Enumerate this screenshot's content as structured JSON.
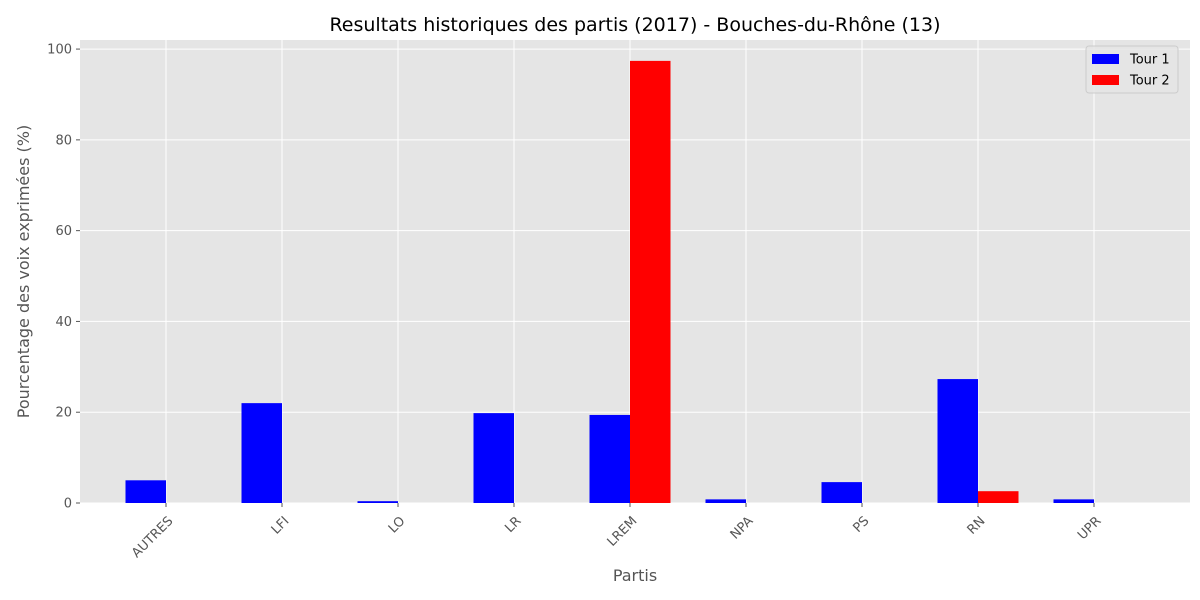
{
  "chart_data": {
    "type": "bar",
    "title": "Resultats historiques des partis (2017) - Bouches-du-Rhône (13)",
    "xlabel": "Partis",
    "ylabel": "Pourcentage des voix exprimées (%)",
    "categories": [
      "AUTRES",
      "LFI",
      "LO",
      "LR",
      "LREM",
      "NPA",
      "PS",
      "RN",
      "UPR"
    ],
    "series": [
      {
        "name": "Tour 1",
        "color": "#0000ff",
        "values": [
          5.0,
          22.0,
          0.4,
          19.8,
          19.4,
          0.8,
          4.6,
          27.3,
          0.8
        ]
      },
      {
        "name": "Tour 2",
        "color": "#ff0000",
        "values": [
          0,
          0,
          0,
          0,
          97.4,
          0,
          0,
          2.6,
          0
        ]
      }
    ],
    "ylim": [
      0,
      102
    ],
    "yticks": [
      0,
      20,
      40,
      60,
      80,
      100
    ],
    "grid": true,
    "legend_position": "top-right",
    "background_color": "#e5e5e5",
    "grid_color": "#ffffff"
  }
}
